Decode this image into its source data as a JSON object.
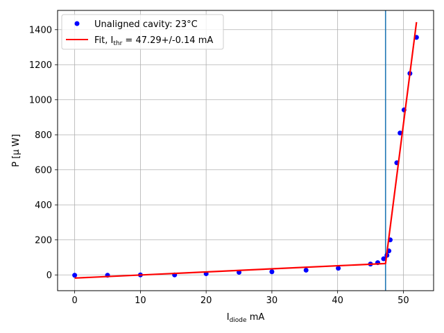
{
  "chart_data": {
    "type": "scatter",
    "xlabel": {
      "main": "I",
      "sub": "diode",
      "unit": " mA"
    },
    "ylabel": "P [μ W]",
    "xlim": [
      -2.6,
      54.6
    ],
    "ylim": [
      -90,
      1510
    ],
    "x_ticks": [
      0,
      10,
      20,
      30,
      40,
      50
    ],
    "y_ticks": [
      0,
      200,
      400,
      600,
      800,
      1000,
      1200,
      1400
    ],
    "grid": true,
    "legend_position": "top-left",
    "colors": {
      "scatter": "#0000ff",
      "fit": "#ff0000",
      "threshold": "#1f77b4",
      "grid": "#b0b0b0"
    },
    "series": [
      {
        "name": "Unaligned cavity: 23°C",
        "kind": "scatter",
        "points": [
          [
            0,
            -2
          ],
          [
            5,
            -2
          ],
          [
            10,
            0
          ],
          [
            15.2,
            0
          ],
          [
            20,
            7
          ],
          [
            25,
            15
          ],
          [
            30,
            18
          ],
          [
            35.2,
            27
          ],
          [
            40.1,
            38
          ],
          [
            45,
            62
          ],
          [
            46.1,
            70
          ],
          [
            47,
            92
          ],
          [
            47.5,
            112
          ],
          [
            47.8,
            137
          ],
          [
            48,
            200
          ],
          [
            49,
            640
          ],
          [
            49.5,
            810
          ],
          [
            50.1,
            942
          ],
          [
            51,
            1150
          ],
          [
            52,
            1356
          ]
        ]
      },
      {
        "name": "Fit, I",
        "name_sub": "thr",
        "name_tail": " = 47.29+/-0.14 mA",
        "kind": "line",
        "points": [
          [
            0,
            -18
          ],
          [
            47.29,
            65
          ],
          [
            52,
            1443
          ]
        ]
      }
    ],
    "threshold_x": 47.29
  }
}
